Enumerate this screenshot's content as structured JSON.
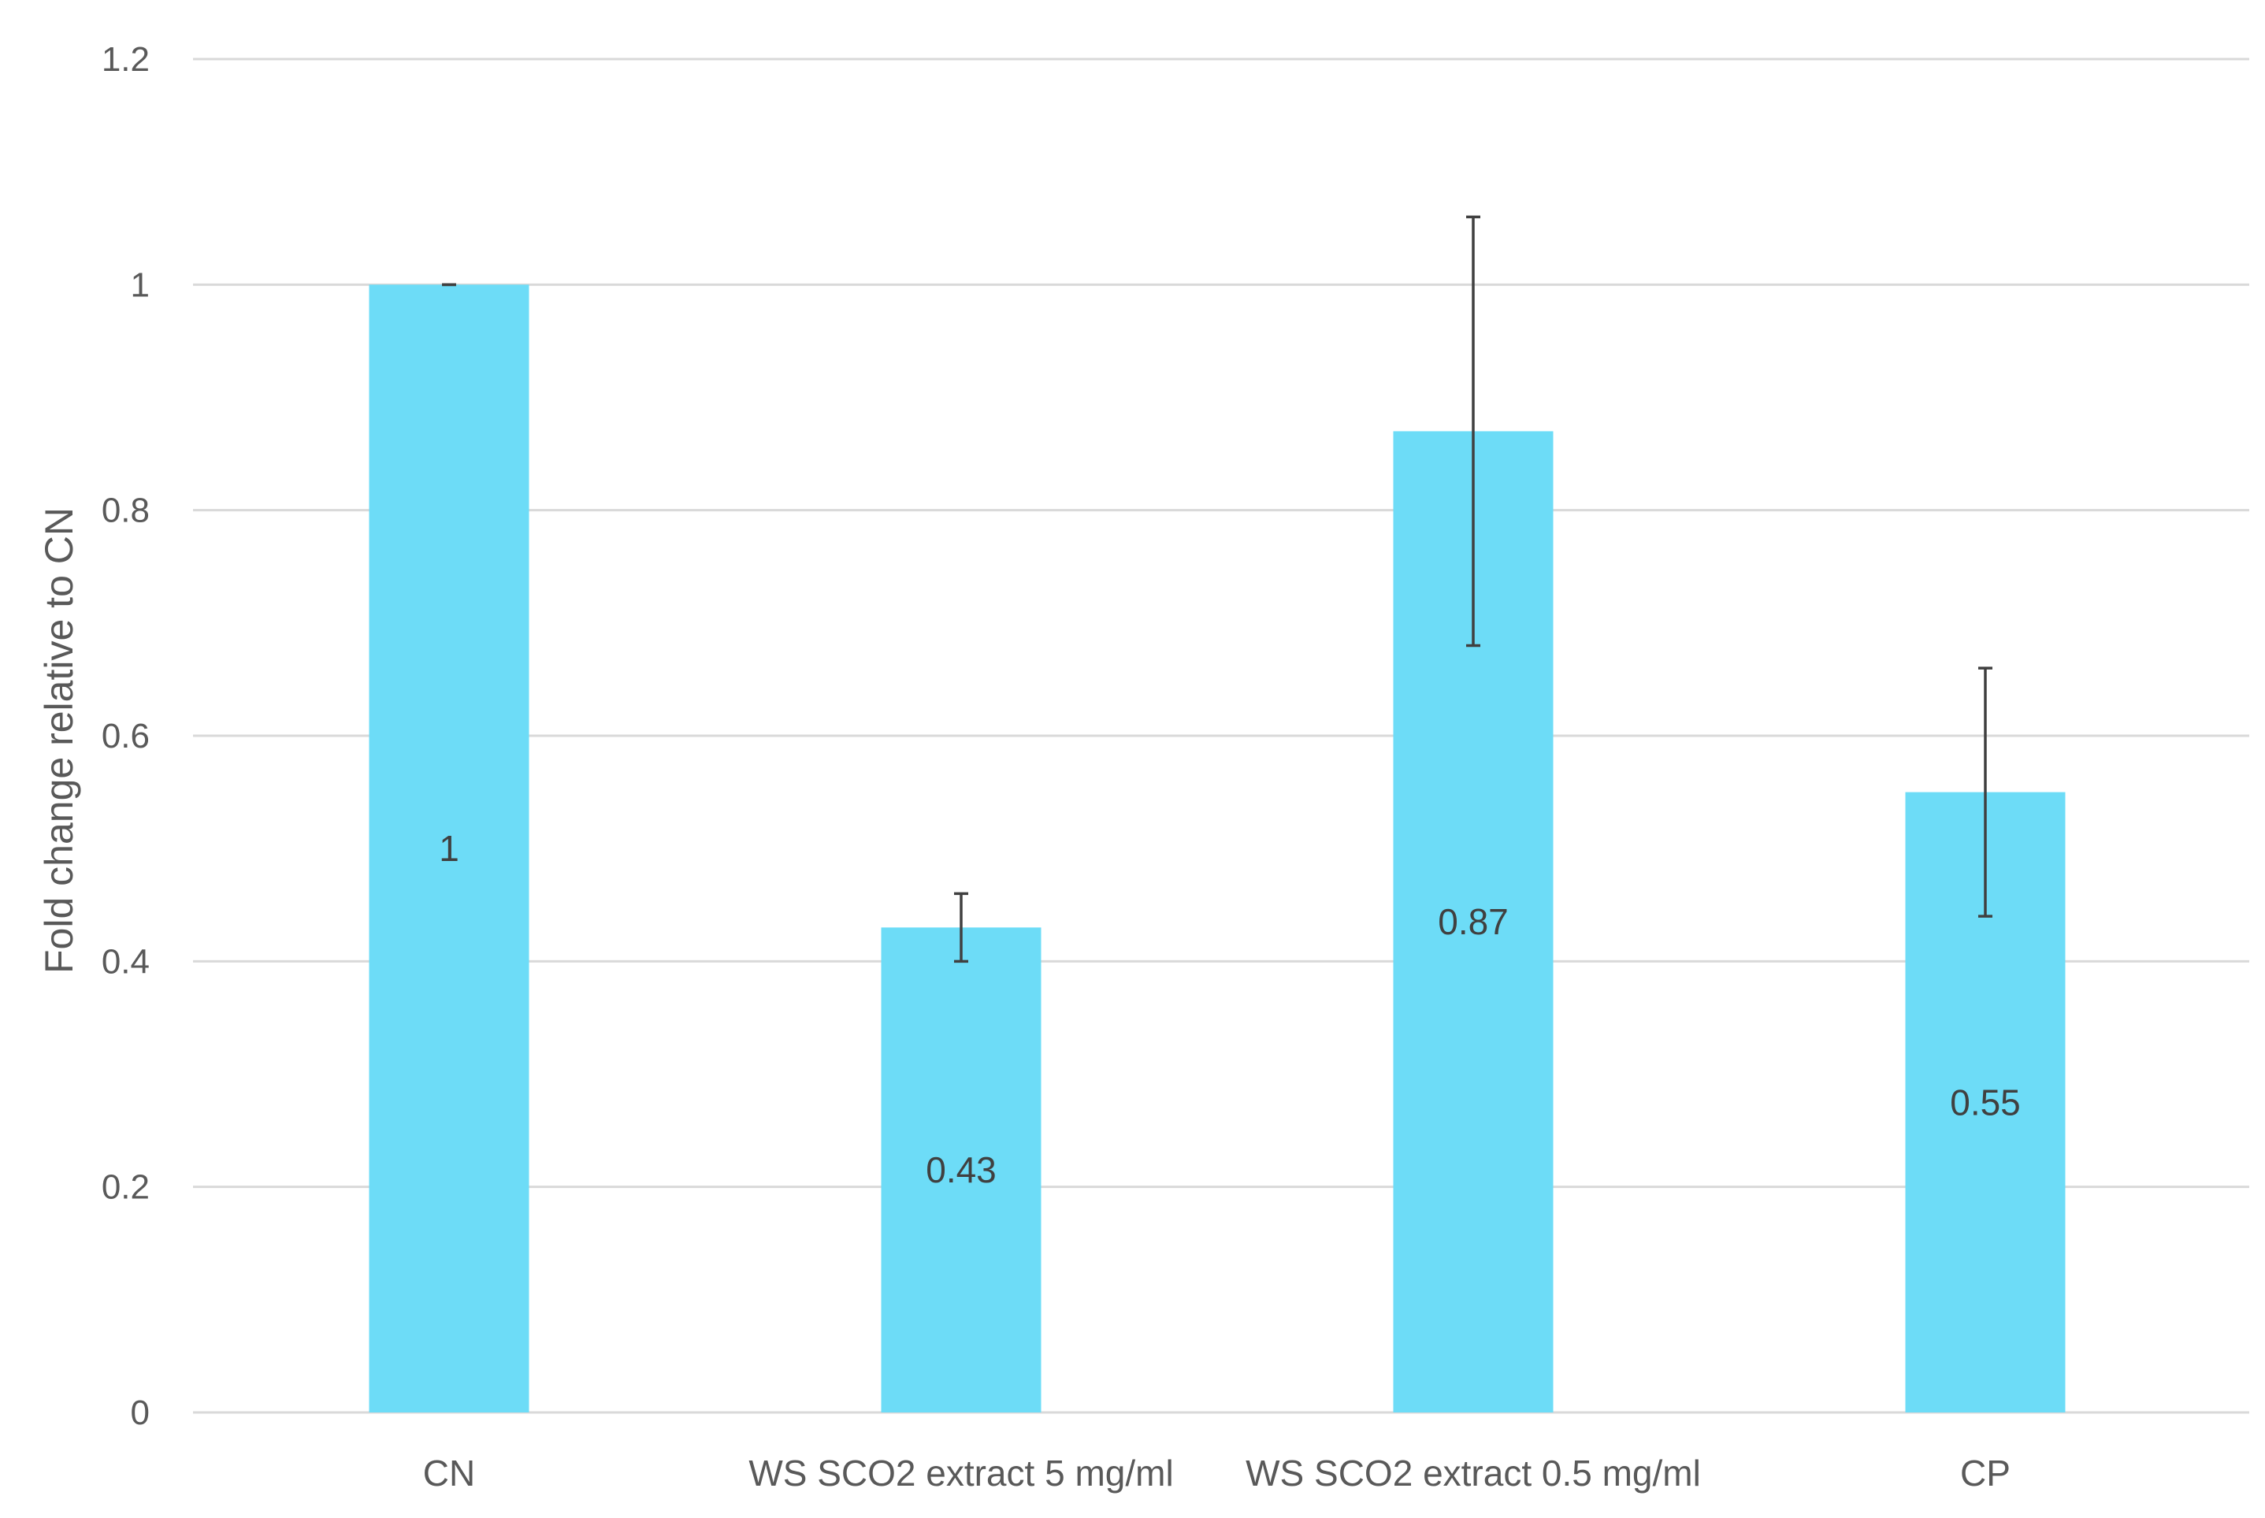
{
  "chart_data": {
    "type": "bar",
    "title": "",
    "xlabel": "",
    "ylabel": "Fold change relative to CN",
    "ylim": [
      0,
      1.2
    ],
    "yticks": [
      0,
      0.2,
      0.4,
      0.6,
      0.8,
      1,
      1.2
    ],
    "ytick_labels": [
      "0",
      "0.2",
      "0.4",
      "0.6",
      "0.8",
      "1",
      "1.2"
    ],
    "grid": true,
    "legend": "none",
    "categories": [
      "CN",
      "WS SCO2 extract 5 mg/ml",
      "WS SCO2 extract 0.5 mg/ml",
      "CP"
    ],
    "values": [
      1,
      0.43,
      0.87,
      0.55
    ],
    "data_labels": [
      "1",
      "0.43",
      "0.87",
      "0.55"
    ],
    "error_low": [
      1.0,
      0.4,
      0.68,
      0.44
    ],
    "error_high": [
      1.0,
      0.46,
      1.06,
      0.66
    ],
    "colors": {
      "bar": "#6ddcf7",
      "grid": "#d9d9d9",
      "text": "#595959",
      "error_bar": "#404040"
    }
  }
}
